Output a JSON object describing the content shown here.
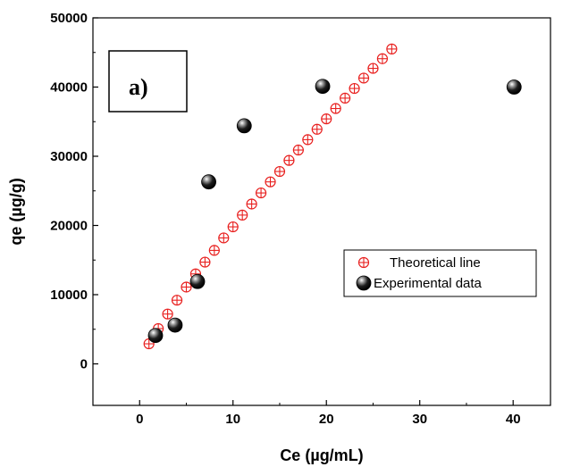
{
  "chart_data": {
    "type": "scatter",
    "title": "",
    "xlabel": "Ce (µg/mL)",
    "ylabel": "qe (µg/g)",
    "xlim": [
      -5,
      44
    ],
    "ylim": [
      -6000,
      50000
    ],
    "xticks": [
      0,
      10,
      20,
      30,
      40
    ],
    "yticks": [
      0,
      10000,
      20000,
      30000,
      40000,
      50000
    ],
    "grid": false,
    "legend_position": "center-right",
    "annotation": "a)",
    "series": [
      {
        "name": "Theoretical line",
        "marker": "circle-plus",
        "color": "#e8201f",
        "x": [
          1,
          2,
          3,
          4,
          5,
          6,
          7,
          8,
          9,
          10,
          11,
          12,
          13,
          14,
          15,
          16,
          17,
          18,
          19,
          20,
          21,
          22,
          23,
          24,
          25,
          26,
          27
        ],
        "y": [
          2900,
          5100,
          7200,
          9200,
          11100,
          13000,
          14700,
          16400,
          18200,
          19800,
          21500,
          23100,
          24700,
          26300,
          27800,
          29400,
          30900,
          32400,
          33900,
          35400,
          36900,
          38400,
          39800,
          41300,
          42700,
          44100,
          45500
        ]
      },
      {
        "name": "Experimental data",
        "marker": "sphere",
        "color": "#000000",
        "x": [
          1.7,
          3.8,
          6.2,
          7.4,
          11.2,
          19.6,
          40.1
        ],
        "y": [
          4100,
          5600,
          11900,
          26300,
          34400,
          40100,
          40000
        ]
      }
    ]
  }
}
